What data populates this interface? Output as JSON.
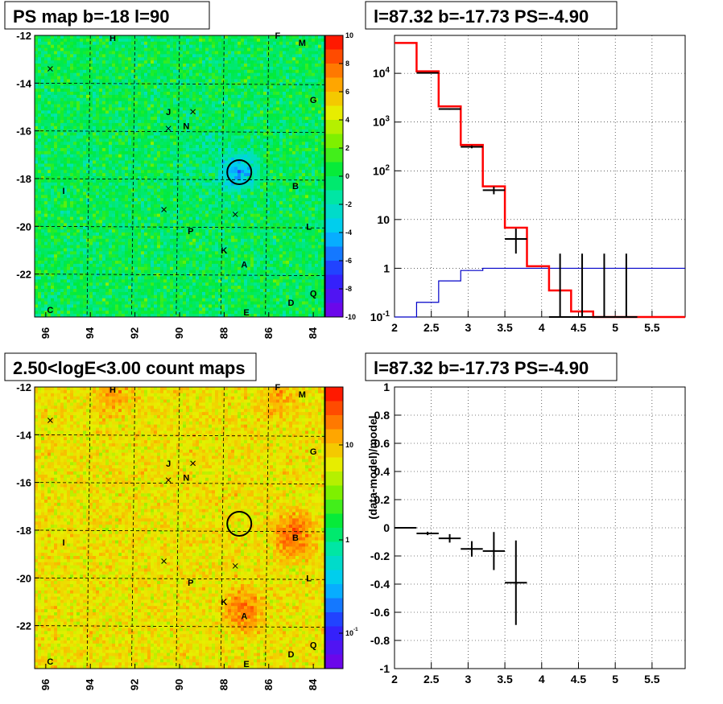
{
  "colors": {
    "data": "#000000",
    "model": "#ff0000",
    "bkg": "#0000c8",
    "circle": "#000000"
  },
  "panels": {
    "ps_map": {
      "title": "PS map b=-18 l=90",
      "y_ticks": [
        "-12",
        "-14",
        "-16",
        "-18",
        "-20",
        "-22"
      ],
      "x_ticks": [
        "96",
        "94",
        "92",
        "90",
        "88",
        "86",
        "84"
      ],
      "colorbar_ticks": [
        "10",
        "8",
        "6",
        "4",
        "2",
        "0",
        "-2",
        "-4",
        "-6",
        "-8",
        "-10"
      ],
      "source_labels": [
        "H",
        "F",
        "M",
        "J",
        "N",
        "G",
        "I",
        "B",
        "P",
        "L",
        "K",
        "A",
        "Q",
        "C",
        "D",
        "E"
      ]
    },
    "spectrum": {
      "title": "l=87.32 b=-17.73 PS=-4.90",
      "y_ticks": [
        "10^{4}",
        "10^{3}",
        "10^{2}",
        "10",
        "1",
        "10^{-1}"
      ],
      "x_ticks": [
        "2",
        "2.5",
        "3",
        "3.5",
        "4",
        "4.5",
        "5",
        "5.5"
      ]
    },
    "count_map": {
      "title": "2.50<logE<3.00 count maps",
      "y_ticks": [
        "-12",
        "-14",
        "-16",
        "-18",
        "-20",
        "-22"
      ],
      "x_ticks": [
        "96",
        "94",
        "92",
        "90",
        "88",
        "86",
        "84"
      ],
      "colorbar_ticks": [
        "10",
        "1",
        "10^{-1}"
      ],
      "source_labels": [
        "H",
        "F",
        "M",
        "J",
        "N",
        "G",
        "I",
        "B",
        "P",
        "L",
        "K",
        "A",
        "Q",
        "C",
        "D",
        "E"
      ]
    },
    "residual": {
      "title": "l=87.32 b=-17.73 PS=-4.90",
      "ylabel": "(data-model)/model",
      "y_ticks": [
        "1",
        "0.8",
        "0.6",
        "0.4",
        "0.2",
        "0",
        "-0.2",
        "-0.4",
        "-0.6",
        "-0.8",
        "-1"
      ],
      "x_ticks": [
        "2",
        "2.5",
        "3",
        "3.5",
        "4",
        "4.5",
        "5",
        "5.5"
      ]
    }
  },
  "chart_data": [
    {
      "type": "heatmap",
      "title": "PS map b=-18 l=90",
      "xlim": [
        96.5,
        83.5
      ],
      "ylim": [
        -23.8,
        -12
      ],
      "zlim": [
        -10,
        10
      ],
      "circle_center": [
        87.32,
        -17.73
      ],
      "sources": [
        {
          "label": "H",
          "l": 93.0,
          "b": -12.1
        },
        {
          "label": "F",
          "l": 85.6,
          "b": -12.0
        },
        {
          "label": "M",
          "l": 84.5,
          "b": -12.3
        },
        {
          "label": "J",
          "l": 90.5,
          "b": -15.2
        },
        {
          "label": "N",
          "l": 89.7,
          "b": -15.8
        },
        {
          "label": "G",
          "l": 84.0,
          "b": -14.7
        },
        {
          "label": "I",
          "l": 95.2,
          "b": -18.5
        },
        {
          "label": "B",
          "l": 84.8,
          "b": -18.3
        },
        {
          "label": "P",
          "l": 89.5,
          "b": -20.2
        },
        {
          "label": "L",
          "l": 84.2,
          "b": -20.0
        },
        {
          "label": "K",
          "l": 88.0,
          "b": -21.0
        },
        {
          "label": "A",
          "l": 87.1,
          "b": -21.6
        },
        {
          "label": "Q",
          "l": 84.0,
          "b": -22.8
        },
        {
          "label": "C",
          "l": 95.8,
          "b": -23.5
        },
        {
          "label": "D",
          "l": 85.0,
          "b": -23.2
        },
        {
          "label": "E",
          "l": 87.0,
          "b": -24.0
        }
      ]
    },
    {
      "type": "line",
      "title": "l=87.32 b=-17.73 PS=-4.90",
      "xlim": [
        2,
        5.95
      ],
      "ylim": [
        0.1,
        60000
      ],
      "log_y": true,
      "bin_edges": [
        2.0,
        2.3,
        2.6,
        2.9,
        3.2,
        3.5,
        3.8,
        4.1,
        4.4,
        4.7,
        5.0,
        5.3,
        5.6,
        5.95
      ],
      "model": [
        42000,
        11000,
        2100,
        340,
        48,
        6.8,
        1.1,
        0.35,
        0.13,
        0.1,
        0.1,
        0.1,
        0.1
      ],
      "background": [
        0.1,
        0.2,
        0.55,
        0.9,
        1.0,
        1.0,
        1.0,
        1.0,
        1.0,
        1.0,
        1.0,
        1.0,
        1.0
      ],
      "data": [
        {
          "x": 2.45,
          "y": 10200,
          "ylo": 9900,
          "yhi": 10400
        },
        {
          "x": 2.75,
          "y": 1850,
          "ylo": 1780,
          "yhi": 1920
        },
        {
          "x": 3.05,
          "y": 310,
          "ylo": 290,
          "yhi": 330
        },
        {
          "x": 3.35,
          "y": 40,
          "ylo": 33,
          "yhi": 47
        },
        {
          "x": 3.65,
          "y": 4,
          "ylo": 2,
          "yhi": 6.5
        },
        {
          "x": 4.25,
          "y": 0.1,
          "ylo": 0.1,
          "yhi": 2
        },
        {
          "x": 4.55,
          "y": 0.1,
          "ylo": 0.1,
          "yhi": 2
        },
        {
          "x": 4.85,
          "y": 0.1,
          "ylo": 0.1,
          "yhi": 2
        },
        {
          "x": 5.15,
          "y": 0.1,
          "ylo": 0.1,
          "yhi": 2
        }
      ],
      "grid": true
    },
    {
      "type": "heatmap",
      "title": "2.50<logE<3.00 count maps",
      "xlim": [
        96.5,
        83.5
      ],
      "ylim": [
        -23.8,
        -12
      ],
      "log_z": true,
      "zlim": [
        0.05,
        30
      ],
      "hotspots": [
        {
          "l": 84.9,
          "b": -18.2,
          "peak": 14
        },
        {
          "l": 87.1,
          "b": -21.4,
          "peak": 12
        },
        {
          "l": 93.0,
          "b": -12.3,
          "peak": 7
        },
        {
          "l": 85.6,
          "b": -12.5,
          "peak": 6
        }
      ],
      "circle_center": [
        87.32,
        -17.73
      ]
    },
    {
      "type": "scatter",
      "title": "l=87.32 b=-17.73 PS=-4.90",
      "ylabel": "(data-model)/model",
      "xlim": [
        2,
        5.95
      ],
      "ylim": [
        -1,
        1
      ],
      "points": [
        {
          "x": 2.15,
          "y": 0.0,
          "xerr": 0.15,
          "yerr": 0.005
        },
        {
          "x": 2.45,
          "y": -0.04,
          "xerr": 0.15,
          "yerr": 0.012
        },
        {
          "x": 2.75,
          "y": -0.075,
          "xerr": 0.15,
          "yerr": 0.03
        },
        {
          "x": 3.05,
          "y": -0.15,
          "xerr": 0.15,
          "yerr": 0.055
        },
        {
          "x": 3.35,
          "y": -0.165,
          "xerr": 0.15,
          "yerr": 0.135
        },
        {
          "x": 3.65,
          "y": -0.39,
          "xerr": 0.15,
          "yerr": 0.3
        }
      ],
      "grid": true
    }
  ]
}
